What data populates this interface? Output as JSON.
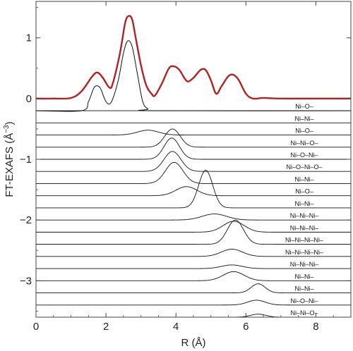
{
  "chart_data": {
    "type": "line",
    "title": "",
    "xlabel": "R (Å)",
    "ylabel": "FT-EXAFS (Å",
    "ylabel_exp": "−3",
    "ylabel_close": ")",
    "xlim": [
      0,
      9
    ],
    "ylim": [
      -3.6,
      1.6
    ],
    "xticks": [
      0,
      2,
      4,
      6,
      8
    ],
    "yticks": [
      1,
      0,
      -1,
      -2,
      -3
    ],
    "ytick_labels": [
      "1",
      "0",
      "−1",
      "−2",
      "−3"
    ],
    "grid": false,
    "colors": {
      "experimental": "#b22222",
      "fit": "#111111",
      "frame": "#444444"
    },
    "experimental": {
      "points": [
        [
          0.0,
          0.0
        ],
        [
          0.5,
          0.0
        ],
        [
          1.0,
          0.01
        ],
        [
          1.3,
          0.12
        ],
        [
          1.6,
          0.36
        ],
        [
          1.75,
          0.43
        ],
        [
          1.9,
          0.35
        ],
        [
          2.1,
          0.18
        ],
        [
          2.2,
          0.26
        ],
        [
          2.4,
          0.75
        ],
        [
          2.55,
          1.25
        ],
        [
          2.65,
          1.36
        ],
        [
          2.75,
          1.3
        ],
        [
          2.85,
          1.0
        ],
        [
          3.0,
          0.55
        ],
        [
          3.15,
          0.22
        ],
        [
          3.3,
          0.08
        ],
        [
          3.4,
          0.05
        ],
        [
          3.6,
          0.25
        ],
        [
          3.8,
          0.5
        ],
        [
          3.95,
          0.53
        ],
        [
          4.1,
          0.47
        ],
        [
          4.25,
          0.33
        ],
        [
          4.35,
          0.28
        ],
        [
          4.5,
          0.34
        ],
        [
          4.7,
          0.47
        ],
        [
          4.85,
          0.47
        ],
        [
          5.0,
          0.3
        ],
        [
          5.15,
          0.08
        ],
        [
          5.3,
          0.2
        ],
        [
          5.5,
          0.37
        ],
        [
          5.65,
          0.39
        ],
        [
          5.8,
          0.3
        ],
        [
          6.0,
          0.08
        ],
        [
          6.2,
          0.0
        ],
        [
          6.5,
          0.01
        ],
        [
          7.0,
          0.0
        ],
        [
          8.0,
          0.0
        ],
        [
          9.0,
          0.0
        ]
      ]
    },
    "fit_total": {
      "points": [
        [
          0.0,
          -0.2
        ],
        [
          1.3,
          -0.2
        ],
        [
          1.5,
          -0.05
        ],
        [
          1.65,
          0.17
        ],
        [
          1.75,
          0.21
        ],
        [
          1.85,
          0.16
        ],
        [
          2.0,
          -0.05
        ],
        [
          2.15,
          -0.06
        ],
        [
          2.35,
          0.3
        ],
        [
          2.5,
          0.75
        ],
        [
          2.62,
          0.95
        ],
        [
          2.75,
          0.85
        ],
        [
          2.9,
          0.4
        ],
        [
          3.05,
          -0.05
        ],
        [
          3.2,
          -0.17
        ],
        [
          3.4,
          -0.2
        ],
        [
          9.0,
          -0.2
        ]
      ]
    },
    "series": [
      {
        "name": "Ni–O–",
        "label": "Ni–O–",
        "baseline": -0.2,
        "peaks": []
      },
      {
        "name": "Ni–Ni–",
        "label": "Ni–Ni–",
        "baseline": -0.4,
        "peaks": []
      },
      {
        "name": "Ni–O–",
        "label": "Ni–O–",
        "baseline": -0.6,
        "peaks": [
          [
            3.2,
            0.08,
            0.3
          ]
        ]
      },
      {
        "name": "Ni–Ni–O–",
        "label": "Ni–Ni–O–",
        "baseline": -0.8,
        "peaks": [
          [
            3.9,
            0.3,
            0.22
          ]
        ]
      },
      {
        "name": "Ni–O–Ni–",
        "label": "Ni–O–Ni–",
        "baseline": -1.0,
        "peaks": [
          [
            3.88,
            0.35,
            0.22
          ]
        ]
      },
      {
        "name": "Ni–O–Ni–O–",
        "label": "Ni–O–Ni–O–",
        "baseline": -1.2,
        "peaks": [
          [
            3.9,
            0.33,
            0.24
          ]
        ]
      },
      {
        "name": "Ni–Ni–",
        "label": "Ni–Ni–",
        "baseline": -1.4,
        "peaks": [
          [
            3.95,
            0.35,
            0.25
          ]
        ]
      },
      {
        "name": "Ni–O–",
        "label": "Ni–O–",
        "baseline": -1.6,
        "peaks": [
          [
            4.3,
            0.15,
            0.3
          ]
        ]
      },
      {
        "name": "Ni–Ni–",
        "label": "Ni–Ni–",
        "baseline": -1.8,
        "peaks": [
          [
            4.85,
            0.62,
            0.2
          ]
        ]
      },
      {
        "name": "Ni–Ni–Ni–",
        "label": "Ni–Ni–Ni–",
        "baseline": -2.0,
        "peaks": [
          [
            5.1,
            0.1,
            0.35
          ]
        ]
      },
      {
        "name": "Ni–Ni–Ni–",
        "label": "Ni–Ni–Ni–",
        "baseline": -2.2,
        "peaks": [
          [
            5.65,
            0.18,
            0.3
          ]
        ]
      },
      {
        "name": "Ni–Ni–Ni–Ni–",
        "label": "Ni–Ni–Ni–Ni–",
        "baseline": -2.4,
        "peaks": [
          [
            5.7,
            0.4,
            0.23
          ]
        ]
      },
      {
        "name": "Ni–Ni–Ni–Ni–",
        "label": "Ni–Ni–Ni–Ni–",
        "baseline": -2.6,
        "peaks": [
          [
            5.6,
            0.12,
            0.3
          ]
        ]
      },
      {
        "name": "Ni–Ni–Ni–",
        "label": "Ni–Ni–Ni–",
        "baseline": -2.8,
        "peaks": [
          [
            5.6,
            0.06,
            0.3
          ]
        ]
      },
      {
        "name": "Ni–Ni–",
        "label": "Ni–Ni–",
        "baseline": -3.0,
        "peaks": [
          [
            5.65,
            0.15,
            0.3
          ]
        ]
      },
      {
        "name": "Ni–Ni–",
        "label": "Ni–Ni–",
        "baseline": -3.2,
        "peaks": [
          [
            6.35,
            0.15,
            0.2
          ]
        ]
      },
      {
        "name": "Ni–O–Ni–",
        "label": "Ni–O–Ni–",
        "baseline": -3.4,
        "peaks": [
          [
            6.3,
            0.08,
            0.25
          ]
        ]
      },
      {
        "name": "Ni–Ni–O–",
        "label": "Ni–Ni–O–",
        "baseline": -3.6,
        "peaks": [
          [
            6.35,
            0.05,
            0.22
          ]
        ]
      }
    ]
  }
}
